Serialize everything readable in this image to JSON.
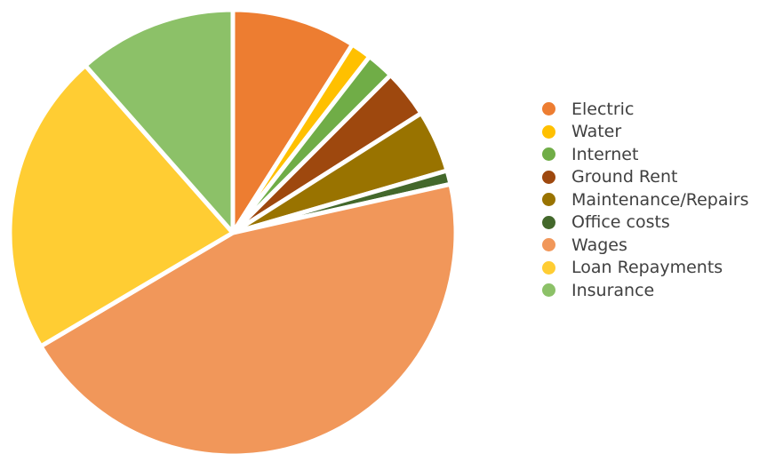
{
  "chart_data": {
    "type": "pie",
    "title": "",
    "categories": [
      "Electric",
      "Water",
      "Internet",
      "Ground Rent",
      "Maintenance/Repairs",
      "Office costs",
      "Wages",
      "Loan Repayments",
      "Insurance"
    ],
    "values": [
      9.0,
      1.5,
      2.0,
      3.5,
      4.5,
      1.0,
      45.0,
      22.0,
      11.5
    ],
    "colors": [
      "#ED7D31",
      "#FFC000",
      "#70AD47",
      "#9E480E",
      "#997300",
      "#43682B",
      "#F1975A",
      "#FFCD33",
      "#8CC168"
    ],
    "legend_position": "right",
    "start_angle": "12 o'clock",
    "direction": "clockwise"
  }
}
